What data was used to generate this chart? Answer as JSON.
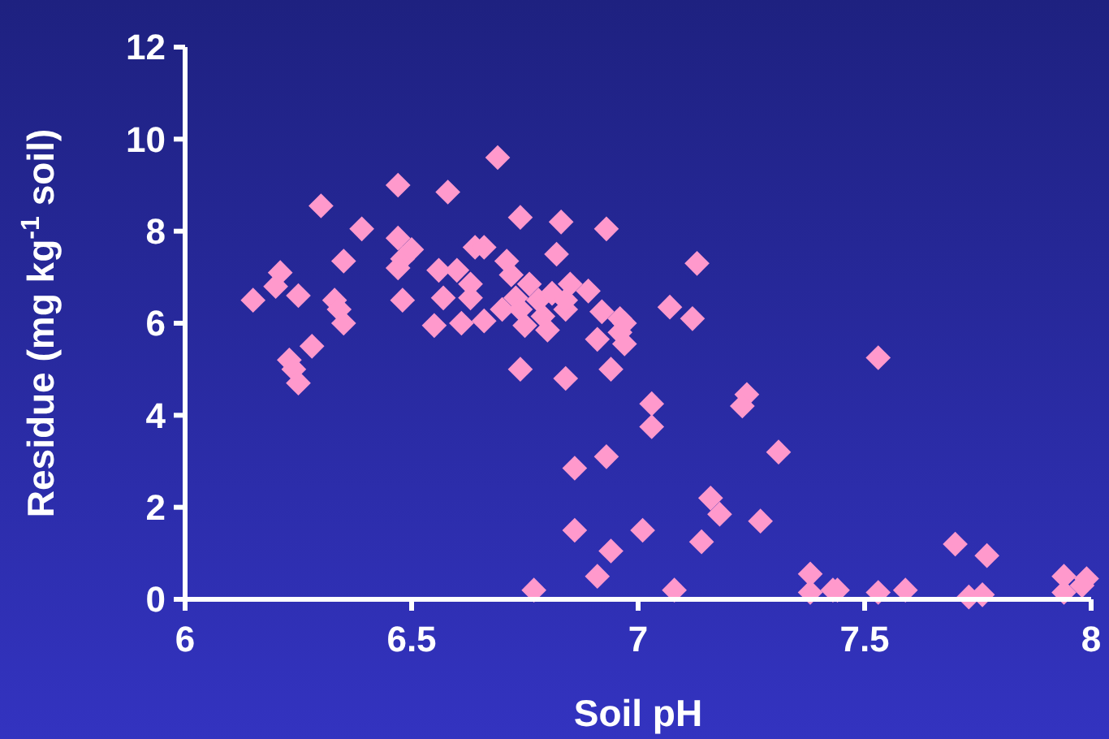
{
  "chart_data": {
    "type": "scatter",
    "xlabel": "Soil pH",
    "ylabel": "Residue (mg kg$^{-1}$ soil)",
    "xlim": [
      6,
      8
    ],
    "ylim": [
      0,
      12
    ],
    "xticks": [
      6,
      6.5,
      7,
      7.5,
      8
    ],
    "yticks": [
      0,
      2,
      4,
      6,
      8,
      10,
      12
    ],
    "grid": false,
    "marker": "diamond",
    "series": [
      {
        "color": "#ff99cc",
        "x": [
          6.15,
          6.21,
          6.2,
          6.25,
          6.23,
          6.24,
          6.25,
          6.28,
          6.3,
          6.33,
          6.34,
          6.35,
          6.35,
          6.39,
          6.47,
          6.47,
          6.48,
          6.47,
          6.48,
          6.5,
          6.55,
          6.56,
          6.57,
          6.58,
          6.6,
          6.61,
          6.63,
          6.63,
          6.64,
          6.66,
          6.66,
          6.69,
          6.7,
          6.71,
          6.72,
          6.73,
          6.74,
          6.74,
          6.74,
          6.75,
          6.76,
          6.77,
          6.78,
          6.79,
          6.8,
          6.81,
          6.82,
          6.83,
          6.84,
          6.84,
          6.84,
          6.85,
          6.86,
          6.86,
          6.89,
          6.91,
          6.91,
          6.92,
          6.93,
          6.93,
          6.94,
          6.94,
          6.96,
          6.96,
          6.97,
          6.97,
          7.01,
          7.03,
          7.03,
          7.07,
          7.08,
          7.12,
          7.13,
          7.14,
          7.16,
          7.18,
          7.24,
          7.23,
          7.27,
          7.31,
          7.38,
          7.38,
          7.43,
          7.44,
          7.53,
          7.53,
          7.59,
          7.7,
          7.77,
          7.73,
          7.76,
          7.94,
          7.99,
          7.94,
          7.98
        ],
        "values": [
          6.5,
          7.1,
          6.8,
          6.6,
          5.2,
          5.0,
          4.7,
          5.5,
          8.55,
          6.5,
          6.3,
          6.0,
          7.35,
          8.05,
          9.0,
          7.85,
          7.4,
          7.2,
          6.5,
          7.6,
          5.95,
          7.15,
          6.55,
          8.85,
          7.15,
          6.0,
          6.85,
          6.55,
          7.65,
          7.65,
          6.05,
          9.6,
          6.3,
          7.35,
          7.05,
          6.55,
          8.3,
          5.0,
          6.3,
          5.95,
          6.85,
          0.2,
          6.5,
          6.15,
          5.85,
          6.65,
          7.5,
          8.2,
          6.3,
          6.5,
          4.8,
          6.85,
          2.85,
          1.5,
          6.7,
          5.65,
          0.5,
          6.25,
          8.05,
          3.1,
          1.05,
          5.0,
          6.1,
          5.8,
          6.0,
          5.55,
          1.5,
          4.25,
          3.75,
          6.35,
          0.2,
          6.1,
          7.3,
          1.25,
          2.2,
          1.85,
          4.45,
          4.2,
          1.7,
          3.2,
          0.55,
          0.15,
          0.2,
          0.2,
          5.25,
          0.15,
          0.2,
          1.2,
          0.95,
          0.05,
          0.1,
          0.5,
          0.45,
          0.15,
          0.3
        ]
      }
    ]
  }
}
